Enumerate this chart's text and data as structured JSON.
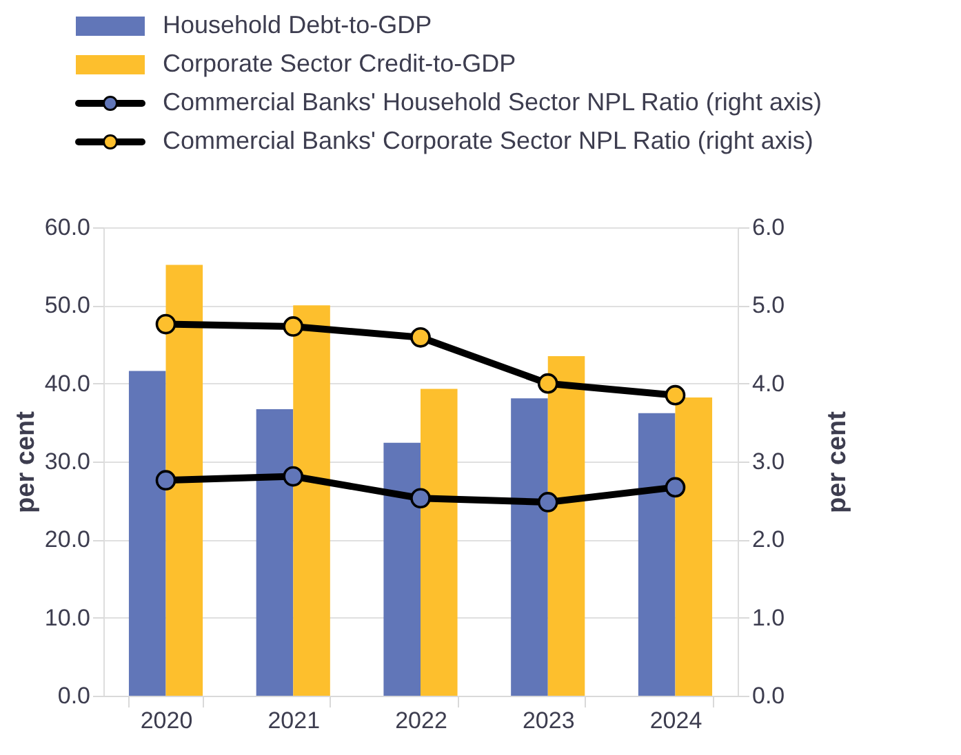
{
  "chart_data": {
    "type": "bar",
    "categories": [
      "2020",
      "2021",
      "2022",
      "2023",
      "2024"
    ],
    "series": [
      {
        "name": "Household Debt-to-GDP",
        "color": "#6176b8",
        "values": [
          41.6,
          36.7,
          32.4,
          38.1,
          36.2
        ]
      },
      {
        "name": "Corporate Sector Credit-to-GDP",
        "color": "#fdbf2d",
        "values": [
          55.2,
          50.0,
          39.3,
          43.5,
          38.2
        ]
      },
      {
        "name": "Commercial Banks' Household Sector NPL Ratio (right axis)",
        "type": "line",
        "axis": "y2",
        "color": "#6176b8",
        "values": [
          2.76,
          2.81,
          2.53,
          2.48,
          2.67
        ]
      },
      {
        "name": "Commercial Banks' Corporate Sector NPL Ratio (right axis)",
        "type": "line",
        "axis": "y2",
        "color": "#fdbf2d",
        "values": [
          4.76,
          4.73,
          4.59,
          4.0,
          3.85
        ]
      }
    ],
    "ylabel": "per cent",
    "y2label": "per cent",
    "ylim": [
      0,
      60
    ],
    "yticks": [
      {
        "value": 0,
        "label": "0.0"
      },
      {
        "value": 10,
        "label": "10.0"
      },
      {
        "value": 20,
        "label": "20.0"
      },
      {
        "value": 30,
        "label": "30.0"
      },
      {
        "value": 40,
        "label": "40.0"
      },
      {
        "value": 50,
        "label": "50.0"
      },
      {
        "value": 60,
        "label": "60.0"
      }
    ],
    "y2lim": [
      0,
      6
    ],
    "y2ticks": [
      {
        "value": 0,
        "label": "0.0"
      },
      {
        "value": 1,
        "label": "1.0"
      },
      {
        "value": 2,
        "label": "2.0"
      },
      {
        "value": 3,
        "label": "3.0"
      },
      {
        "value": 4,
        "label": "4.0"
      },
      {
        "value": 5,
        "label": "5.0"
      },
      {
        "value": 6,
        "label": "6.0"
      }
    ],
    "grid": "y",
    "legend": "top",
    "marker": "circle",
    "line_style": "solid"
  }
}
